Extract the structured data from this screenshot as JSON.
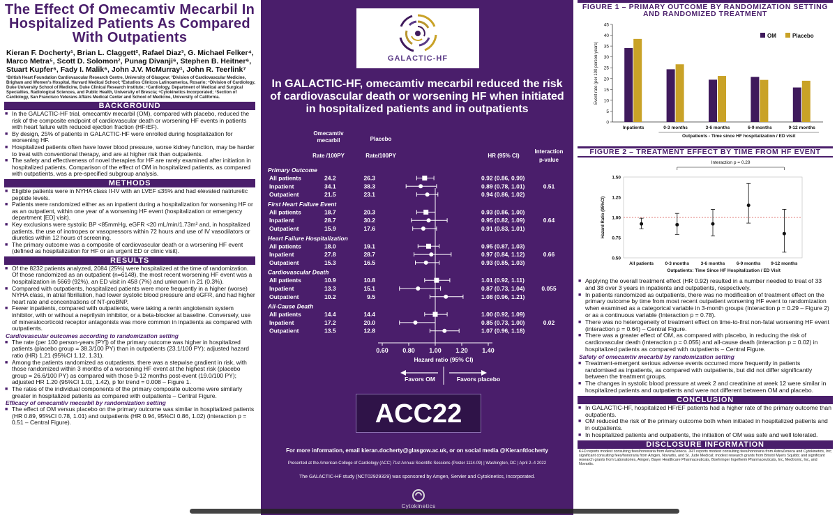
{
  "poster": {
    "title": "The Effect Of Omecamtiv Mecarbil In Hospitalized Patients As Compared With Outpatients",
    "authors": "Kieran F. Docherty¹, Brian L. Claggett², Rafael Diaz³, G. Michael Felker⁴, Marco Metra⁵, Scott D. Solomon², Punag Divanji⁶, Stephen B. Heitner⁶, Stuart Kupfer⁶, Fady I. Malik⁶, John J.V. McMurray¹, John R. Teerlink⁷",
    "affiliations": "¹British Heart Foundation Cardiovascular Research Centre, University of Glasgow; ²Division of Cardiovascular Medicine, Brigham and Women's Hospital, Harvard Medical School; ³Estudios Clinicos Latinoamerica, Rosario; ⁴Division of Cardiology, Duke University School of Medicine, Duke Clinical Research Institute; ⁵Cardiology, Department of Medical and Surgical Specialties, Radiological Sciences, and Public Health, University of Brescia; ⁶Cytokinetics Incorporated; ⁷Section of Cardiology, San Francisco Veterans Affairs Medical Center and School of Medicine, University of California."
  },
  "background": {
    "heading": "BACKGROUND",
    "items": [
      "In the GALACTIC-HF trial, omecamtiv mecarbil (OM), compared with placebo, reduced the risk of the composite endpoint of cardiovascular death or worsening HF events in patients with heart failure with reduced ejection fraction (HFrEF).",
      "By design, 25% of patients in GALACTIC-HF were enrolled during hospitalization for worsening HF.",
      "Hospitalized patients often have lower blood pressure, worse kidney function, may be harder to treat with conventional therapy, and are at higher risk than outpatients.",
      "The safety and effectiveness of novel therapies for HF are rarely examined after initiation in hospitalized patients. Comparison of the effect of OM in hospitalized patients, as compared with outpatients, was a pre-specified subgroup analysis."
    ]
  },
  "methods": {
    "heading": "METHODS",
    "items": [
      "Eligible patients were in NYHA class II-IV with an LVEF ≤35% and had elevated natriuretic peptide levels.",
      "Patients were randomized either as an inpatient during a hospitalization for worsening HF or as an outpatient, within one year of a worsening HF event (hospitalization or emergency department [ED] visit).",
      "Key exclusions were systolic BP <85mmHg, eGFR <20 mL/min/1.73m² and, in hospitalized patients, the use of inotropes or vasopressors within 72 hours and use of IV vasodilators or diuretics within 12 hours of screening.",
      "The primary outcome was a composite of cardiovascular death or a worsening HF event (defined as hospitalization for HF or an urgent ED or clinic visit)."
    ]
  },
  "results": {
    "heading": "RESULTS",
    "items": [
      "Of the 8232 patients analyzed, 2084 (25%) were hospitalized at the time of randomization. Of those randomized as an outpatient (n=6148), the most recent worsening HF event was a hospitalization in 5669 (92%), an ED visit in 458 (7%) and unknown in 21 (0.3%).",
      "Compared with outpatients, hospitalized patients were more frequently in a higher (worse) NYHA class, in atrial fibrillation, had lower systolic blood pressure and eGFR, and had higher heart rate and concentrations of NT-proBNP.",
      "Fewer inpatients, compared with outpatients, were taking a renin angiotensin system inhibitor, with or without a neprilysin inhibitor, or a beta-blocker at baseline. Conversely, use of mineralocorticoid receptor antagonists was more common in inpatients as compared with outpatients."
    ],
    "sub1": "Cardiovascular outcomes according to randomization setting",
    "sub1_items": [
      "The rate (per 100 person-years [PY]) of the primary outcome was higher in hospitalized patients (placebo group = 38.3/100 PY) than in outpatients (23.1/100 PY); adjusted hazard ratio (HR) 1.21 (95%CI 1.12, 1.31).",
      "Among the patients randomized as outpatients, there was a stepwise gradient in risk, with those randomized within 3 months of a worsening HF event at the highest risk (placebo group = 26.6/100 PY) as compared with those 9-12 months post-event (19.0/100 PY); adjusted HR 1.20 (95%CI 1.01, 1.42), p for trend = 0.008 – Figure 1.",
      "The rates of the individual components of the primary composite outcome were similarly greater in hospitalized patients as compared with outpatients – Central Figure."
    ],
    "sub2": "Efficacy of omecamtiv mecarbil by randomization setting",
    "sub2_items": [
      "The effect of OM versus placebo on the primary outcome was similar in hospitalized patients (HR 0.89, 95%CI 0.78, 1.01) and outpatients (HR 0.94, 95%CI 0.86, 1.02) (interaction p = 0.51 – Central Figure)."
    ]
  },
  "center": {
    "logo_text": "GALACTIC-HF",
    "headline": "In GALACTIC-HF, omecamtiv mecarbil reduced the risk of cardiovascular death or worsening HF when initiated in hospitalized patients and in outpatients",
    "col_om": "Omecamtiv mecarbil",
    "col_rate1": "Rate /100PY",
    "col_placebo": "Placebo",
    "col_rate2": "Rate/100PY",
    "col_hr": "HR (95% CI)",
    "col_interaction": "Interaction p-value",
    "axis_label": "Hazard ratio (95% CI)",
    "favors_om": "Favors OM",
    "favors_placebo": "Favors placebo",
    "acc_text": "ACC22",
    "more_info": "For more information, email kieran.docherty@glasgow.ac.uk, or on social media @Kieranfdocherty",
    "presented": "Presented at the American College of Cardiology (ACC) 71st Annual Scientific Sessions (Poster 1114-09) | Washington, DC | April 2–4 2022",
    "sponsor": "The GALACTIC-HF study (NCT02929329) was sponsored by Amgen, Servier and Cytokinetics, Incorporated.",
    "cyto": "Cytokinetics"
  },
  "forest_data": {
    "axis_ticks": [
      0.6,
      0.8,
      1.0,
      1.2,
      1.4
    ],
    "axis_tick_labels": [
      "0.60",
      "0.80",
      "1.00",
      "1.20",
      "1.40"
    ],
    "groups": [
      {
        "title": "Primary Outcome",
        "p": "0.51",
        "rows": [
          {
            "label": "All patients",
            "om": "24.2",
            "pl": "26.3",
            "hrtxt": "0.92 (0.86, 0.99)",
            "hr": 0.92,
            "lo": 0.86,
            "hi": 0.99,
            "sq": true
          },
          {
            "label": "Inpatient",
            "om": "34.1",
            "pl": "38.3",
            "hrtxt": "0.89 (0.78, 1.01)",
            "hr": 0.89,
            "lo": 0.78,
            "hi": 1.01,
            "sq": false
          },
          {
            "label": "Outpatient",
            "om": "21.5",
            "pl": "23.1",
            "hrtxt": "0.94 (0.86, 1.02)",
            "hr": 0.94,
            "lo": 0.86,
            "hi": 1.02,
            "sq": false
          }
        ]
      },
      {
        "title": "First Heart Failure Event",
        "p": "0.64",
        "rows": [
          {
            "label": "All patients",
            "om": "18.7",
            "pl": "20.3",
            "hrtxt": "0.93 (0.86, 1.00)",
            "hr": 0.93,
            "lo": 0.86,
            "hi": 1.0,
            "sq": true
          },
          {
            "label": "Inpatient",
            "om": "28.7",
            "pl": "30.2",
            "hrtxt": "0.95 (0.82, 1.09)",
            "hr": 0.95,
            "lo": 0.82,
            "hi": 1.09,
            "sq": false
          },
          {
            "label": "Outpatient",
            "om": "15.9",
            "pl": "17.6",
            "hrtxt": "0.91 (0.83, 1.01)",
            "hr": 0.91,
            "lo": 0.83,
            "hi": 1.01,
            "sq": false
          }
        ]
      },
      {
        "title": "Heart Failure Hospitalization",
        "p": "0.66",
        "rows": [
          {
            "label": "All patients",
            "om": "18.0",
            "pl": "19.1",
            "hrtxt": "0.95 (0.87, 1.03)",
            "hr": 0.95,
            "lo": 0.87,
            "hi": 1.03,
            "sq": true
          },
          {
            "label": "Inpatient",
            "om": "27.8",
            "pl": "28.7",
            "hrtxt": "0.97 (0.84, 1.12)",
            "hr": 0.97,
            "lo": 0.84,
            "hi": 1.12,
            "sq": false
          },
          {
            "label": "Outpatient",
            "om": "15.3",
            "pl": "16.5",
            "hrtxt": "0.93 (0.85, 1.03)",
            "hr": 0.93,
            "lo": 0.85,
            "hi": 1.03,
            "sq": false
          }
        ]
      },
      {
        "title": "Cardiovascular Death",
        "p": "0.055",
        "rows": [
          {
            "label": "All patients",
            "om": "10.9",
            "pl": "10.8",
            "hrtxt": "1.01 (0.92, 1.11)",
            "hr": 1.01,
            "lo": 0.92,
            "hi": 1.11,
            "sq": true
          },
          {
            "label": "Inpatient",
            "om": "13.3",
            "pl": "15.1",
            "hrtxt": "0.87 (0.73, 1.04)",
            "hr": 0.87,
            "lo": 0.73,
            "hi": 1.04,
            "sq": false
          },
          {
            "label": "Outpatient",
            "om": "10.2",
            "pl": "9.5",
            "hrtxt": "1.08 (0.96, 1.21)",
            "hr": 1.08,
            "lo": 0.96,
            "hi": 1.21,
            "sq": false
          }
        ]
      },
      {
        "title": "All-Cause Death",
        "p": "0.02",
        "rows": [
          {
            "label": "All patients",
            "om": "14.4",
            "pl": "14.4",
            "hrtxt": "1.00 (0.92, 1.09)",
            "hr": 1.0,
            "lo": 0.92,
            "hi": 1.09,
            "sq": true
          },
          {
            "label": "Inpatient",
            "om": "17.2",
            "pl": "20.0",
            "hrtxt": "0.85 (0.73, 1.00)",
            "hr": 0.85,
            "lo": 0.73,
            "hi": 1.0,
            "sq": false
          },
          {
            "label": "Outpatient",
            "om": "13.5",
            "pl": "12.8",
            "hrtxt": "1.07 (0.96, 1.18)",
            "hr": 1.07,
            "lo": 0.96,
            "hi": 1.18,
            "sq": false
          }
        ]
      }
    ]
  },
  "figure1": {
    "heading": "FIGURE 1 – PRIMARY OUTCOME BY RANDOMIZATION SETTING AND RANDOMIZED TREATMENT"
  },
  "figure2": {
    "heading": "FIGURE 2 – TREATMENT EFFECT BY TIME FROM HF EVENT"
  },
  "chart_data": [
    {
      "type": "bar",
      "categories": [
        "Inpatients",
        "0-3 months",
        "3-6 months",
        "6-9 months",
        "9-12 months"
      ],
      "series": [
        {
          "name": "OM",
          "values": [
            34.1,
            24.3,
            19.5,
            20.8,
            15.9
          ]
        },
        {
          "name": "Placebo",
          "values": [
            38.3,
            26.6,
            21.2,
            19.4,
            19.0
          ]
        }
      ],
      "ylabel": "Event rate (per 100 person-years)",
      "xlabel": "Outpatients - Time since HF hospitalization / ED visit",
      "ylim": [
        0,
        45
      ],
      "yticks": [
        0,
        5,
        10,
        15,
        20,
        25,
        30,
        35,
        40,
        45
      ],
      "legend_position": "top-right",
      "colors": {
        "OM": "#3f1a5c",
        "Placebo": "#c9a227"
      }
    },
    {
      "type": "scatter",
      "categories": [
        "All patients",
        "0-3 months",
        "3-6 months",
        "6-9 months",
        "9-12 months"
      ],
      "values": [
        0.92,
        0.91,
        0.92,
        1.15,
        0.8
      ],
      "lower": [
        0.86,
        0.79,
        0.77,
        0.93,
        0.57
      ],
      "upper": [
        0.99,
        1.05,
        1.1,
        1.42,
        1.1
      ],
      "ylabel": "Hazard Ratio (95%CI)",
      "xlabel": "Outpatients: Time Since HF Hospitalization / ED Visit",
      "ylim": [
        0.5,
        1.5
      ],
      "yticks": [
        "0.50",
        "0.75",
        "1.00",
        "1.25",
        "1.50"
      ],
      "reference_line": 1.0,
      "annotation": "Interaction p = 0.29"
    }
  ],
  "right_text": {
    "items": [
      "Applying the overall treatment effect (HR 0.92) resulted in a number needed to treat of 33 and 38 over 3 years in inpatients and outpatients, respectively.",
      "In patients randomized as outpatients, there was no modification of treatment effect on the primary outcome by time from most recent outpatient worsening HF event to randomization when examined as a categorical variable in 3-month groups (Interaction p = 0.29 – Figure 2) or as a continuous variable (Interaction p = 0.78).",
      "There was no heterogeneity of treatment effect on time-to-first non-fatal worsening HF event (interaction p = 0.64) – Central Figure.",
      "There was a greater effect of OM, as compared with placebo, in reducing the risk of cardiovascular death (interaction p = 0.055) and all-cause death (interaction p = 0.02) in hospitalized patients as compared with outpatients – Central Figure."
    ],
    "safety_head": "Safety of omecamtiv mecarbil by randomization setting",
    "safety_items": [
      "Treatment-emergent serious adverse events occurred more frequently in patients randomised as inpatients, as compared with outpatients, but did not differ significantly between the treatment groups.",
      "The changes in systolic blood pressure at week 2 and creatinine at week 12 were similar in hospitalized patients and outpatients and were not different between OM and placebo."
    ],
    "conclusion_head": "CONCLUSION",
    "conclusion_items": [
      "In GALACTIC-HF, hospitalized HFrEF patients had a higher rate of the primary outcome than outpatients.",
      "OM reduced the risk of the primary outcome both when initiated in hospitalized patients and in outpatients.",
      "In hospitalized patients and outpatients, the initiation of OM was safe and well tolerated."
    ],
    "disclosure_head": "DISCLOSURE INFORMATION",
    "disclosure": "KFD reports modest consulting fees/honoraria from AstraZeneca. JRT reports modest consulting fees/honoraria from AstraZeneca and Cytokinetics, Inc; significant consulting fees/honoraria from Amgen, Novartis, and St. Jude Medical; modest research grants from Bristol Myers Squibb; and significant research grants from Laboratories, Amgen, Bayer Healthcare Pharmaceuticals, Boehringer Ingelheim Pharmaceuticals, Inc, Medtronic, Inc, and Novartis."
  }
}
